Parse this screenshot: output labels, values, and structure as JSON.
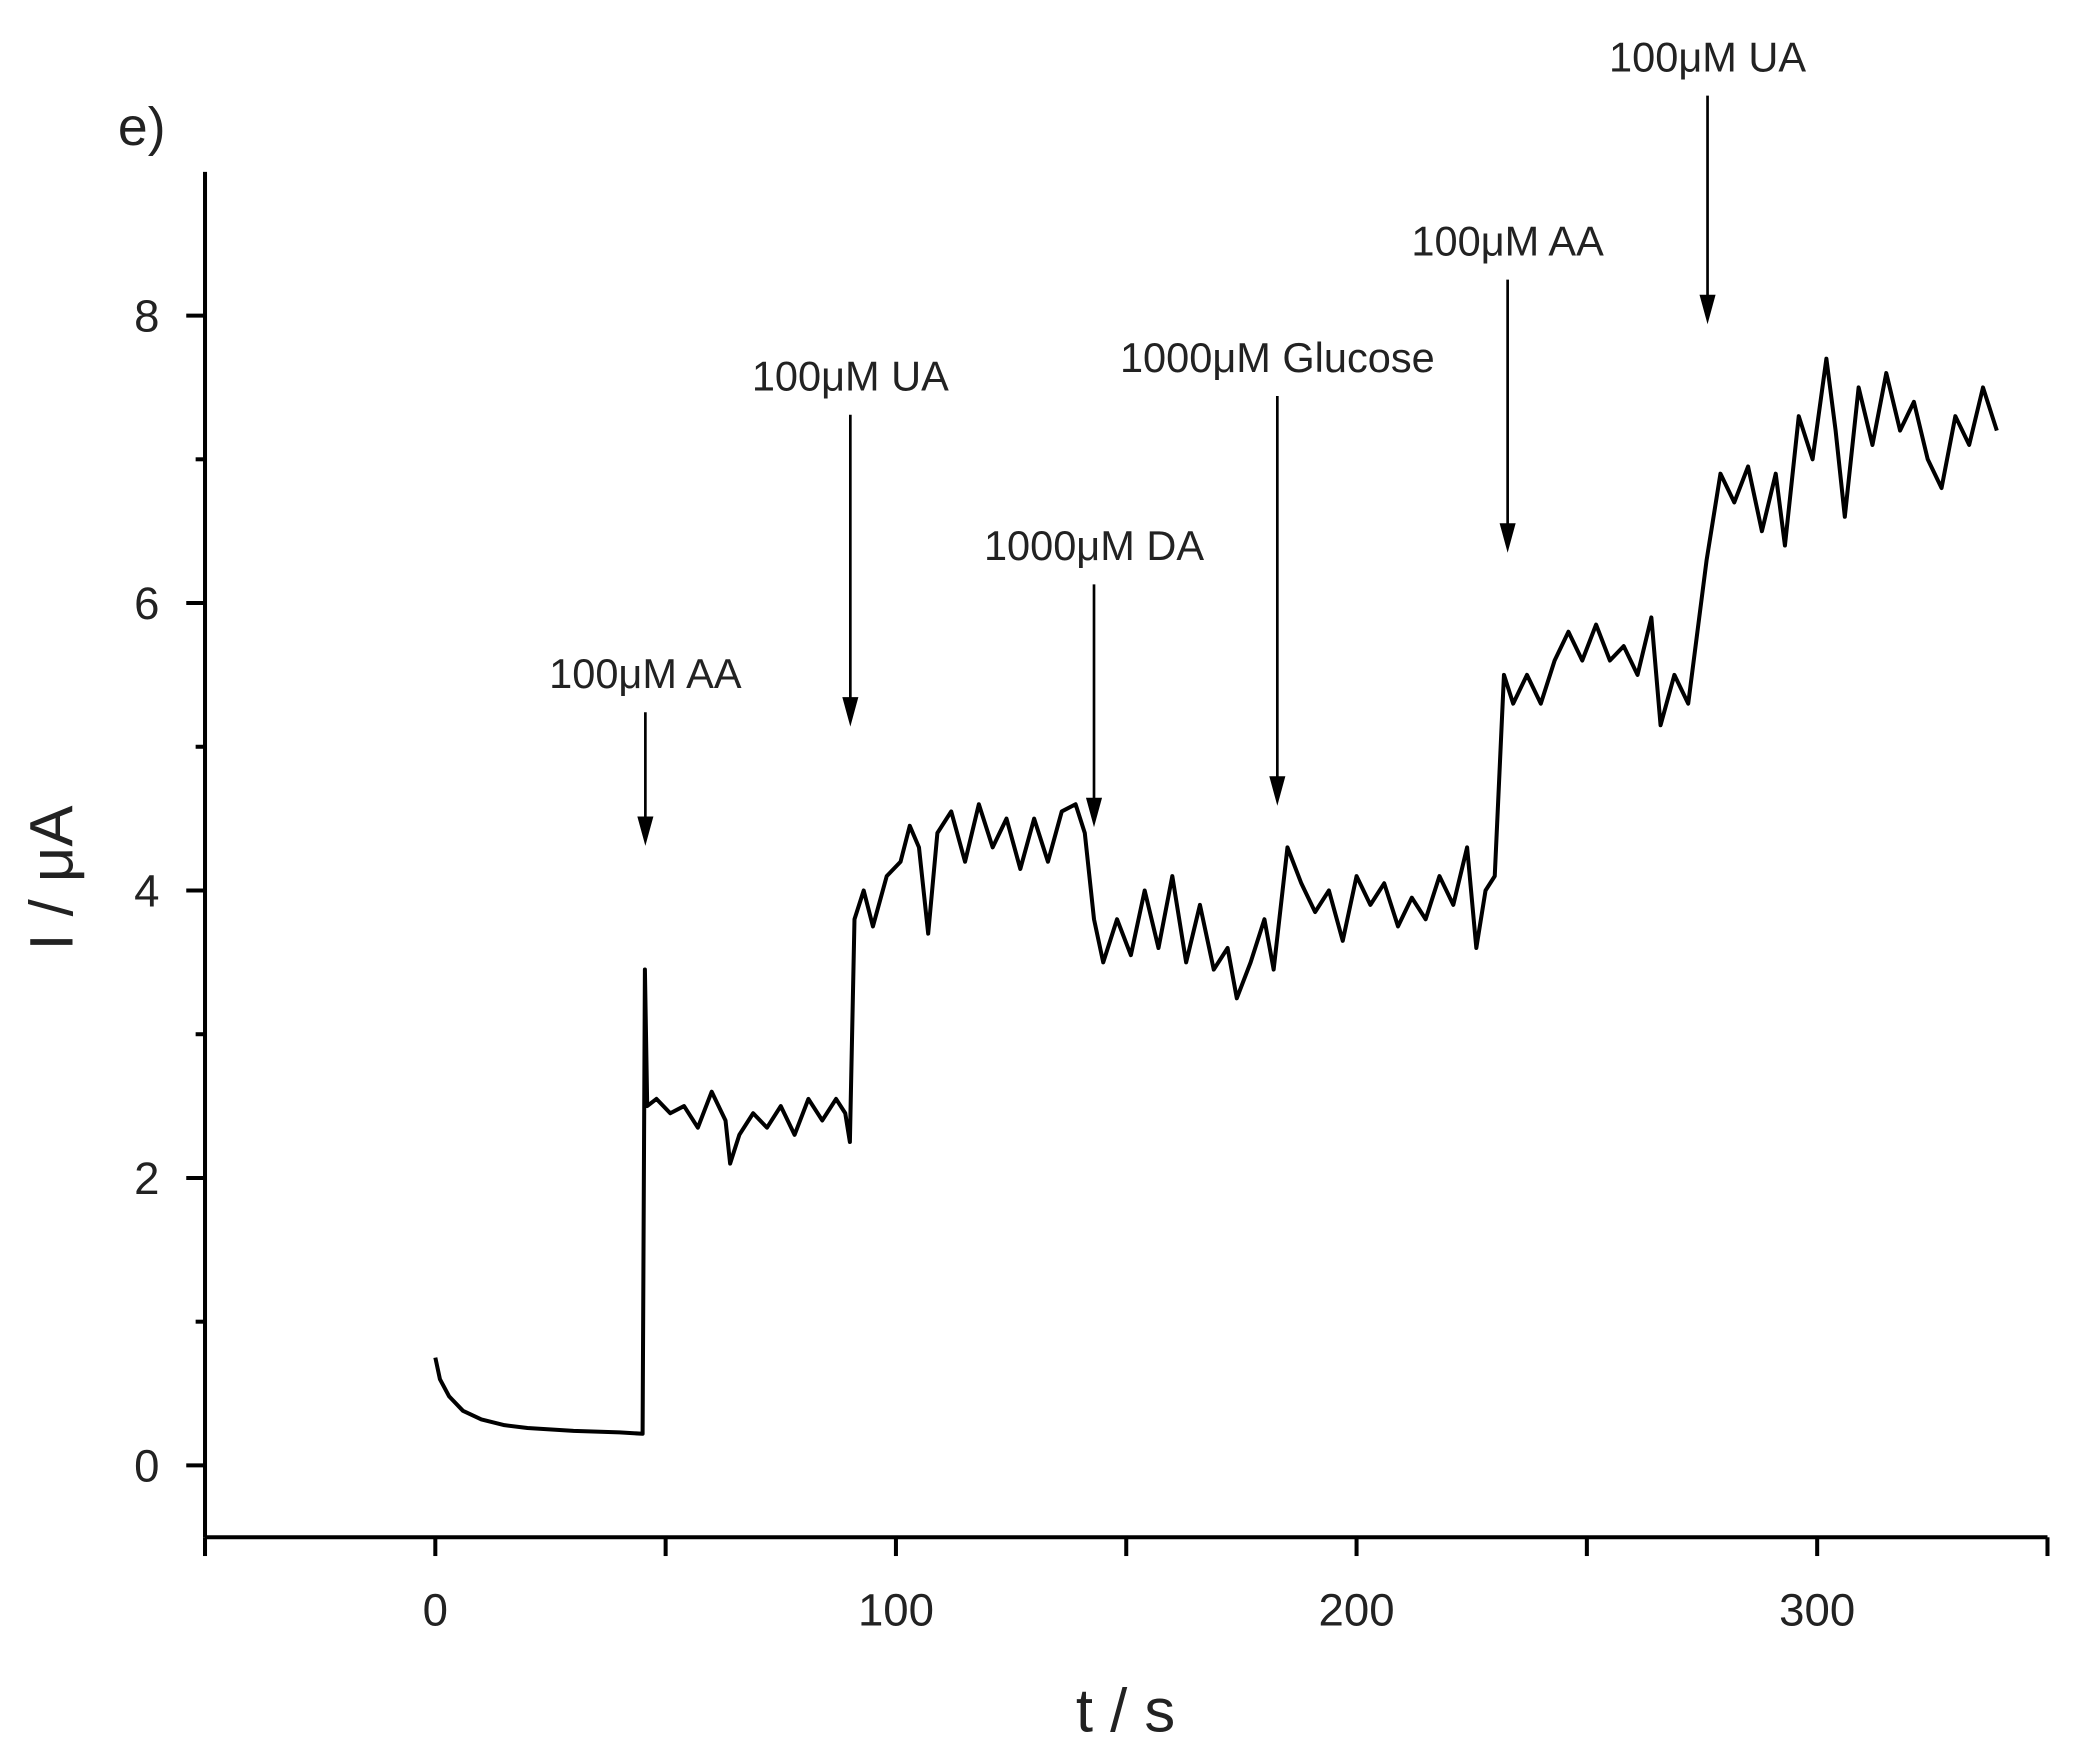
{
  "chart_data": {
    "type": "line",
    "panel_label": "e)",
    "xlabel": "t / s",
    "ylabel": "I / μA",
    "xlim": [
      -50,
      350
    ],
    "ylim": [
      -0.5,
      9
    ],
    "xticks": [
      0,
      100,
      200,
      300
    ],
    "yticks": [
      0,
      2,
      4,
      6,
      8
    ],
    "xminor_ticks": [
      -50,
      50,
      150,
      250,
      350
    ],
    "yminor_ticks": [
      1,
      3,
      5,
      7
    ],
    "color": "#000000",
    "x": [
      0,
      1,
      3,
      6,
      10,
      15,
      20,
      30,
      40,
      45,
      45.5,
      46,
      48,
      51,
      54,
      57,
      60,
      63,
      64,
      66,
      69,
      72,
      75,
      78,
      81,
      84,
      87,
      89,
      90,
      91,
      93,
      95,
      98,
      101,
      103,
      105,
      107,
      109,
      112,
      115,
      118,
      121,
      124,
      127,
      130,
      133,
      136,
      139,
      141,
      143,
      145,
      148,
      151,
      154,
      157,
      160,
      163,
      166,
      169,
      172,
      174,
      177,
      180,
      182,
      185,
      188,
      191,
      194,
      197,
      200,
      203,
      206,
      209,
      212,
      215,
      218,
      221,
      224,
      226,
      228,
      230,
      232,
      234,
      237,
      240,
      243,
      246,
      249,
      252,
      255,
      258,
      261,
      264,
      266,
      269,
      272,
      274,
      276,
      279,
      282,
      285,
      288,
      291,
      293,
      296,
      299,
      302,
      304,
      306,
      309,
      312,
      315,
      318,
      321,
      324,
      327,
      330,
      333,
      336,
      339
    ],
    "values": [
      0.75,
      0.6,
      0.48,
      0.38,
      0.32,
      0.28,
      0.26,
      0.24,
      0.23,
      0.22,
      3.45,
      2.5,
      2.55,
      2.45,
      2.5,
      2.35,
      2.6,
      2.4,
      2.1,
      2.3,
      2.45,
      2.35,
      2.5,
      2.3,
      2.55,
      2.4,
      2.55,
      2.45,
      2.25,
      3.8,
      4.0,
      3.75,
      4.1,
      4.2,
      4.45,
      4.3,
      3.7,
      4.4,
      4.55,
      4.2,
      4.6,
      4.3,
      4.5,
      4.15,
      4.5,
      4.2,
      4.55,
      4.6,
      4.4,
      3.8,
      3.5,
      3.8,
      3.55,
      4.0,
      3.6,
      4.1,
      3.5,
      3.9,
      3.45,
      3.6,
      3.25,
      3.5,
      3.8,
      3.45,
      4.3,
      4.05,
      3.85,
      4.0,
      3.65,
      4.1,
      3.9,
      4.05,
      3.75,
      3.95,
      3.8,
      4.1,
      3.9,
      4.3,
      3.6,
      4.0,
      4.1,
      5.5,
      5.3,
      5.5,
      5.3,
      5.6,
      5.8,
      5.6,
      5.85,
      5.6,
      5.7,
      5.5,
      5.9,
      5.15,
      5.5,
      5.3,
      5.8,
      6.3,
      6.9,
      6.7,
      6.95,
      6.5,
      6.9,
      6.4,
      7.3,
      7.0,
      7.7,
      7.2,
      6.6,
      7.5,
      7.1,
      7.6,
      7.2,
      7.4,
      7.0,
      6.8,
      7.3,
      7.1,
      7.5,
      7.2
    ],
    "annotations": [
      {
        "text": "100μM AA",
        "x": 45.6,
        "y": 4.31,
        "text_y": 5.24
      },
      {
        "text": "100μM UA",
        "x": 90.1,
        "y": 5.14,
        "text_y": 7.31
      },
      {
        "text": "1000μM DA",
        "x": 143.0,
        "y": 4.44,
        "text_y": 6.13
      },
      {
        "text": "1000μM Glucose",
        "x": 182.8,
        "y": 4.59,
        "text_y": 7.44
      },
      {
        "text": "100μM AA",
        "x": 232.8,
        "y": 6.35,
        "text_y": 8.25
      },
      {
        "text": "100μM UA",
        "x": 276.2,
        "y": 7.94,
        "text_y": 9.53
      }
    ]
  }
}
